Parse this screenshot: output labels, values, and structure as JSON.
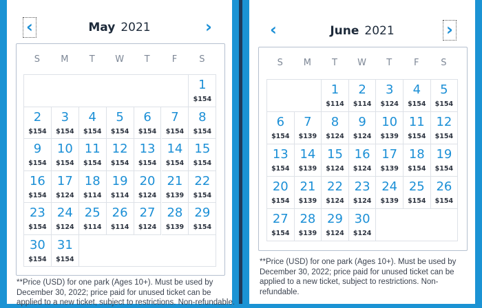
{
  "days_of_week": [
    "S",
    "M",
    "T",
    "W",
    "T",
    "F",
    "S"
  ],
  "colors": {
    "accent": "#1b8fd6",
    "frame": "#1b93d4",
    "text": "#1d2a3a"
  },
  "footnote": "**Price (USD) for one park (Ages 10+). Must be used by December 30, 2022; price paid for unused ticket can be applied to a new ticket, subject to restrictions. Non-refundable.",
  "calendars": [
    {
      "month": "May",
      "year": "2021",
      "first_weekday": 6,
      "prev_icon": "chevron-left-icon",
      "next_icon": "chevron-right-icon",
      "prices": [
        "$154",
        "$154",
        "$154",
        "$154",
        "$154",
        "$154",
        "$154",
        "$154",
        "$154",
        "$154",
        "$154",
        "$154",
        "$154",
        "$154",
        "$154",
        "$154",
        "$124",
        "$114",
        "$114",
        "$124",
        "$139",
        "$154",
        "$154",
        "$124",
        "$114",
        "$114",
        "$124",
        "$139",
        "$154",
        "$154",
        "$154"
      ]
    },
    {
      "month": "June",
      "year": "2021",
      "first_weekday": 2,
      "prev_icon": "chevron-left-icon",
      "next_icon": "chevron-right-icon",
      "prices": [
        "$114",
        "$114",
        "$124",
        "$154",
        "$154",
        "$154",
        "$139",
        "$124",
        "$124",
        "$139",
        "$154",
        "$154",
        "$154",
        "$139",
        "$124",
        "$124",
        "$139",
        "$154",
        "$154",
        "$154",
        "$139",
        "$124",
        "$124",
        "$139",
        "$154",
        "$154",
        "$154",
        "$139",
        "$124",
        "$124"
      ]
    }
  ]
}
